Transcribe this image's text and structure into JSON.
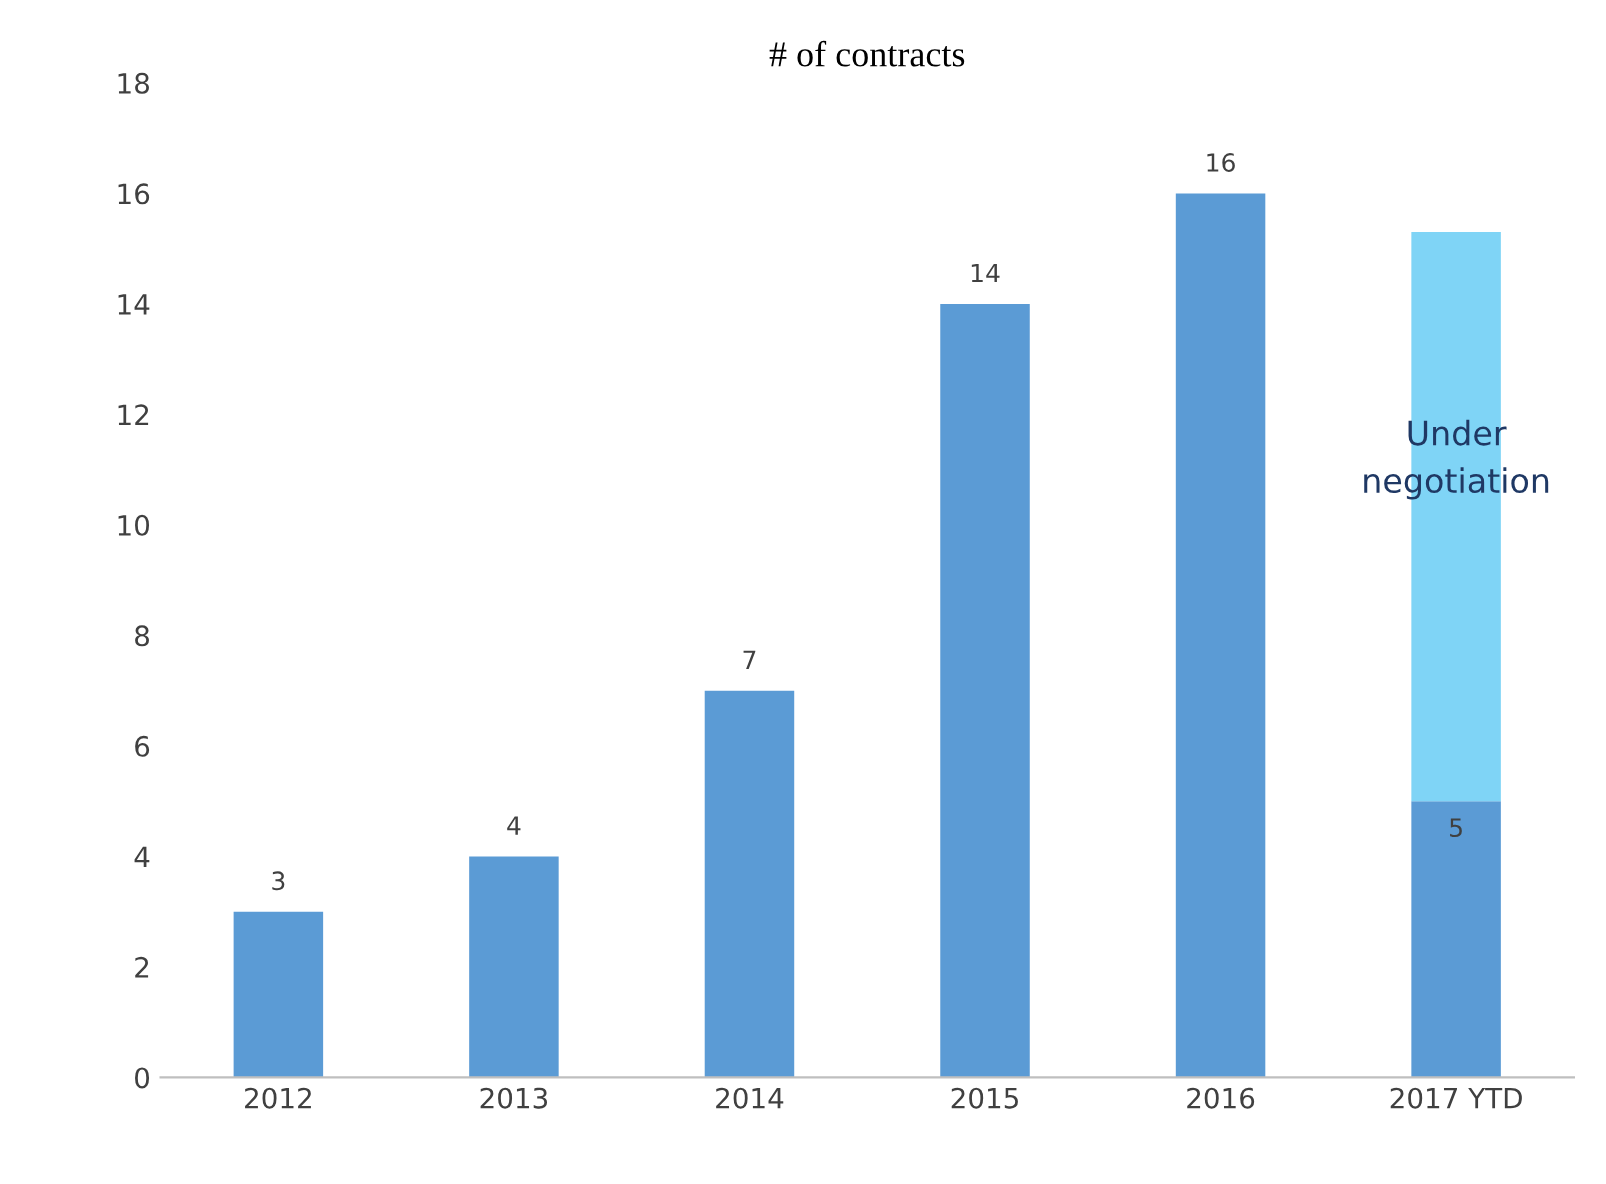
{
  "chart_data": {
    "type": "bar",
    "title": "# of contracts",
    "stacked": true,
    "categories": [
      "2012",
      "2013",
      "2014",
      "2015",
      "2016",
      "2017 YTD"
    ],
    "series": [
      {
        "color": "#5b9bd5",
        "values": [
          3,
          4,
          7,
          14,
          16,
          5
        ],
        "value_labels": [
          "3",
          "4",
          "7",
          "14",
          "16",
          "5"
        ]
      },
      {
        "name": "Under negotiation",
        "color": "#7fd4f6",
        "values": [
          null,
          null,
          null,
          null,
          null,
          10.3
        ]
      }
    ],
    "ylim": [
      0,
      18
    ],
    "yticks": [
      0,
      2,
      4,
      6,
      8,
      10,
      12,
      14,
      16,
      18
    ],
    "grid": false,
    "legend": false
  }
}
